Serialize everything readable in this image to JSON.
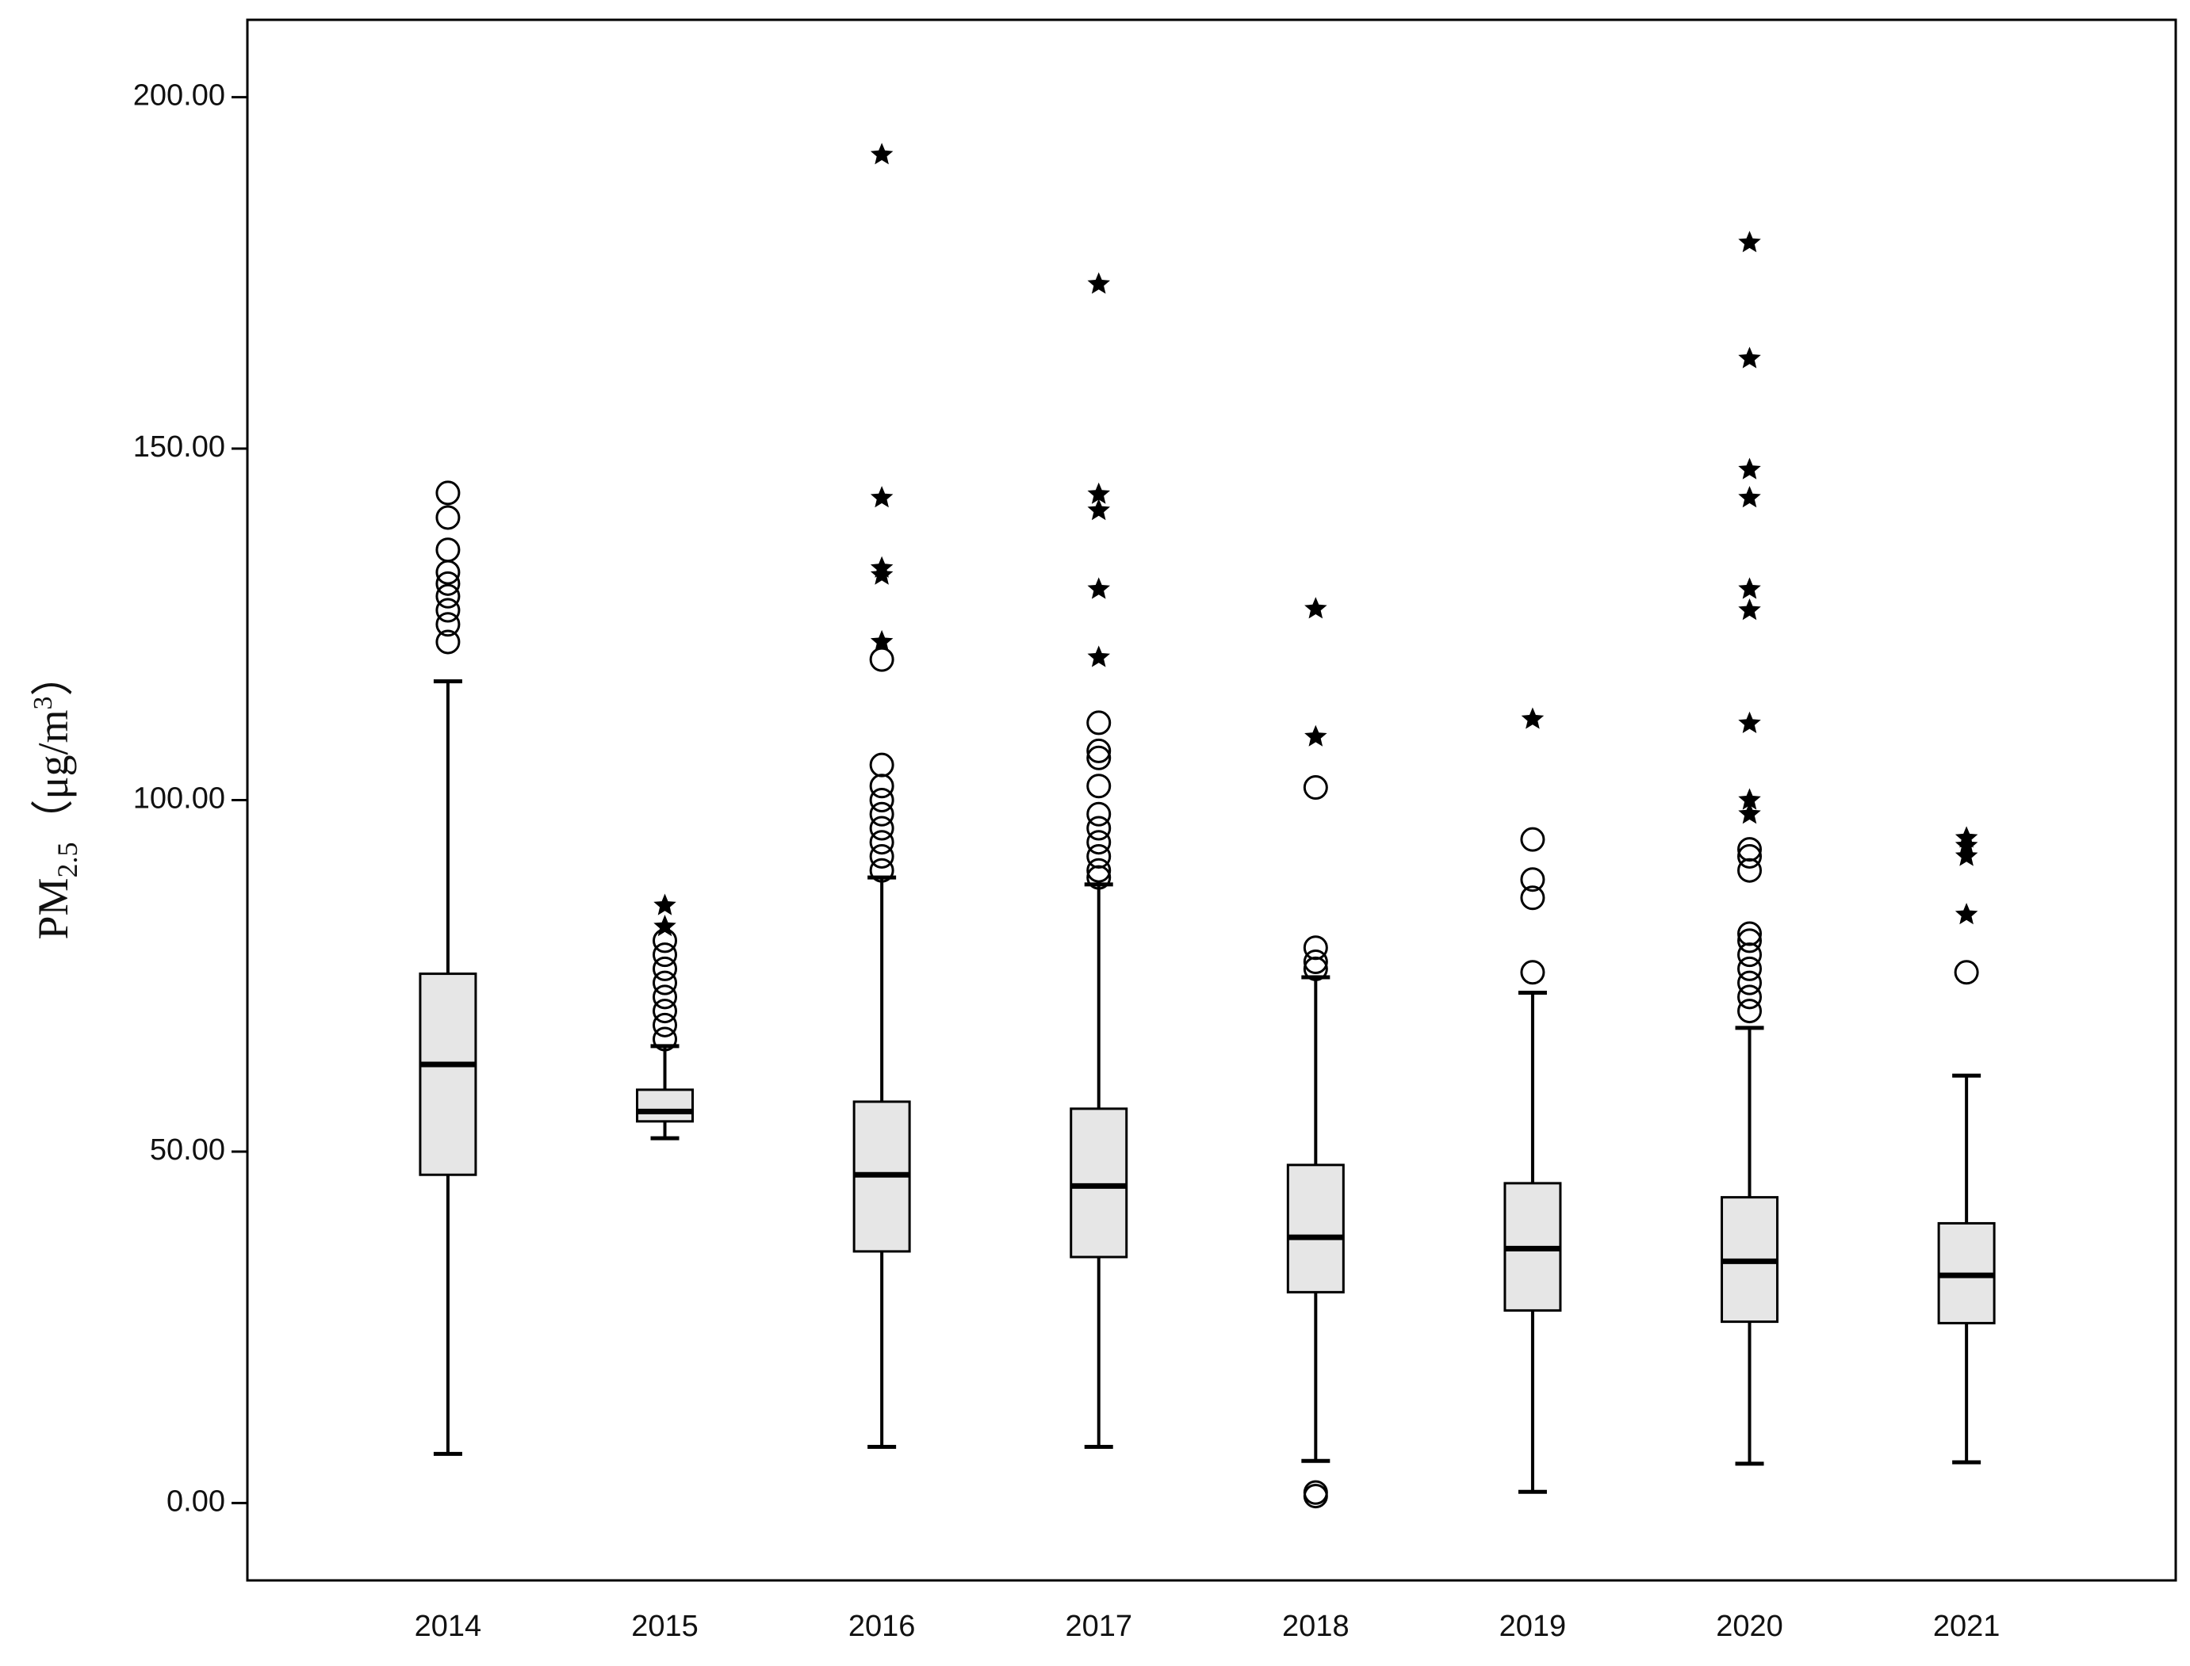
{
  "chart_data": {
    "type": "box",
    "y_label": {
      "text": "PM",
      "subscript": "2.5",
      "middle": "（μg/m",
      "superscript": "3",
      "end": "）"
    },
    "categories": [
      "2014",
      "2015",
      "2016",
      "2017",
      "2018",
      "2019",
      "2020",
      "2021"
    ],
    "box_color": "#e6e6e6",
    "line_color": "#000000",
    "ylim": [
      -11,
      211
    ],
    "yticks": [
      {
        "value": 0,
        "label": "0.00"
      },
      {
        "value": 50,
        "label": "50.00"
      },
      {
        "value": 100,
        "label": "100.00"
      },
      {
        "value": 150,
        "label": "150.00"
      },
      {
        "value": 200,
        "label": "200.00"
      }
    ],
    "boxes": [
      {
        "whisker_low": 7,
        "q1": 46.7,
        "median": 62.4,
        "q3": 75.3,
        "whisker_high": 116.9,
        "outliers": [
          122.5,
          125,
          127,
          129,
          130.8,
          132.4,
          135.6,
          140.2,
          143.7
        ],
        "extremes": []
      },
      {
        "whisker_low": 51.9,
        "q1": 54.3,
        "median": 55.7,
        "q3": 58.8,
        "whisker_high": 65,
        "outliers": [
          66,
          68,
          70,
          72,
          74,
          76,
          78,
          80
        ],
        "extremes": [
          82,
          85
        ]
      },
      {
        "whisker_low": 8,
        "q1": 35.8,
        "median": 46.7,
        "q3": 57.1,
        "whisker_high": 89,
        "outliers": [
          90,
          92,
          94,
          96,
          98,
          100,
          102,
          105,
          120
        ],
        "extremes": [
          122.5,
          132,
          133,
          143,
          191.8
        ]
      },
      {
        "whisker_low": 8,
        "q1": 35,
        "median": 45.1,
        "q3": 56.1,
        "whisker_high": 88,
        "outliers": [
          89,
          90,
          92,
          94,
          96,
          98,
          102,
          106,
          107,
          111
        ],
        "extremes": [
          120.3,
          130,
          141.2,
          143.5,
          173.4
        ]
      },
      {
        "whisker_low": 6,
        "q1": 30,
        "median": 37.8,
        "q3": 48.1,
        "whisker_high": 74.8,
        "outliers": [
          1,
          1.5,
          76,
          77,
          79,
          101.8
        ],
        "extremes": [
          109,
          127.2
        ]
      },
      {
        "whisker_low": 1.6,
        "q1": 27.4,
        "median": 36.2,
        "q3": 45.5,
        "whisker_high": 72.6,
        "outliers": [
          75.5,
          86.1,
          88.7,
          94.4
        ],
        "extremes": [
          111.5
        ]
      },
      {
        "whisker_low": 5.6,
        "q1": 25.8,
        "median": 34.4,
        "q3": 43.5,
        "whisker_high": 67.6,
        "outliers": [
          70,
          72,
          74,
          76,
          78,
          80,
          81,
          90,
          92,
          93
        ],
        "extremes": [
          98,
          100,
          110.9,
          127,
          130,
          143,
          147,
          162.8,
          179.3
        ]
      },
      {
        "whisker_low": 5.8,
        "q1": 25.6,
        "median": 32.4,
        "q3": 39.8,
        "whisker_high": 60.8,
        "outliers": [
          75.5
        ],
        "extremes": [
          83.7,
          92,
          93.5,
          94.6
        ]
      }
    ]
  }
}
